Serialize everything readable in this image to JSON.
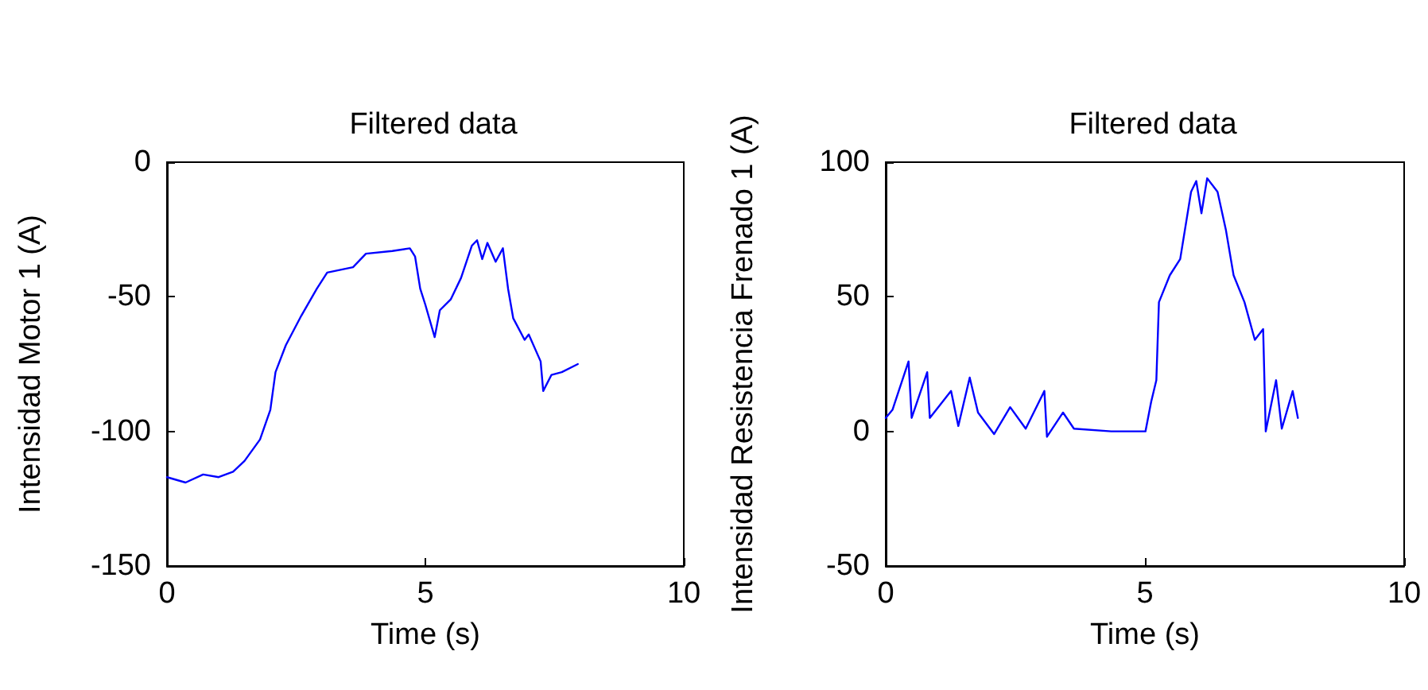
{
  "chart_data": [
    {
      "type": "line",
      "title": "Filtered data",
      "xlabel": "Time (s)",
      "ylabel": "Intensidad Motor 1 (A)",
      "xlim": [
        0,
        10
      ],
      "xticks": [
        0,
        5,
        10
      ],
      "ylim": [
        -150,
        0
      ],
      "yticks": [
        -150,
        -100,
        -50,
        0
      ],
      "grid": false,
      "marker": "none",
      "series": [
        {
          "color": "#0000ff",
          "x": [
            0,
            0.36,
            0.7,
            1.0,
            1.28,
            1.5,
            1.8,
            2.0,
            2.1,
            2.3,
            2.6,
            2.9,
            3.1,
            3.6,
            3.85,
            4.36,
            4.7,
            4.8,
            4.9,
            5.0,
            5.18,
            5.28,
            5.49,
            5.69,
            5.9,
            6.0,
            6.1,
            6.2,
            6.36,
            6.5,
            6.6,
            6.7,
            6.92,
            7.0,
            7.23,
            7.28,
            7.44,
            7.64,
            7.95
          ],
          "values": [
            -117,
            -119,
            -116,
            -117,
            -115,
            -111,
            -103,
            -92,
            -78,
            -68,
            -57,
            -47,
            -41,
            -39,
            -34,
            -33,
            -32,
            -35,
            -47,
            -53,
            -65,
            -55,
            -51,
            -43,
            -31,
            -29,
            -36,
            -30,
            -37,
            -32,
            -47,
            -58,
            -66,
            -64,
            -74,
            -85,
            -79,
            -78,
            -75
          ]
        }
      ]
    },
    {
      "type": "line",
      "title": "Filtered data",
      "xlabel": "Time (s)",
      "ylabel": "Intensidad Resistencia Frenado 1 (A)",
      "xlim": [
        0,
        10
      ],
      "xticks": [
        0,
        5,
        10
      ],
      "ylim": [
        -50,
        100
      ],
      "yticks": [
        -50,
        0,
        50,
        100
      ],
      "grid": false,
      "marker": "none",
      "series": [
        {
          "color": "#0000ff",
          "x": [
            0,
            0.13,
            0.44,
            0.5,
            0.8,
            0.85,
            1.26,
            1.4,
            1.62,
            1.78,
            2.09,
            2.4,
            2.7,
            3.06,
            3.11,
            3.42,
            3.63,
            4.35,
            5.01,
            5.12,
            5.22,
            5.27,
            5.48,
            5.68,
            5.89,
            5.99,
            6.09,
            6.2,
            6.4,
            6.56,
            6.71,
            6.92,
            7.12,
            7.28,
            7.33,
            7.53,
            7.64,
            7.85,
            7.95
          ],
          "values": [
            5,
            8,
            26,
            5,
            22,
            5,
            15,
            2,
            20,
            7,
            -1,
            9,
            1,
            15,
            -2,
            7,
            1,
            0,
            0,
            11,
            19,
            48,
            58,
            64,
            89,
            93,
            81,
            94,
            89,
            75,
            58,
            48,
            34,
            38,
            0,
            19,
            1,
            15,
            5
          ]
        }
      ]
    }
  ]
}
